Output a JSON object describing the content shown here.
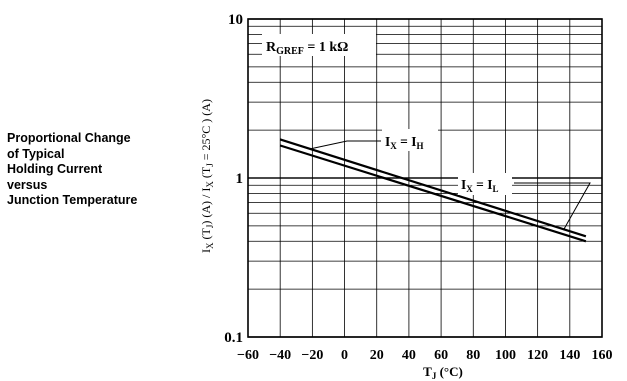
{
  "caption": [
    "Proportional Change",
    "of Typical",
    "Holding Current",
    "versus",
    "Junction Temperature"
  ],
  "chart_data": {
    "type": "line",
    "title": "",
    "xlabel": {
      "main": "T",
      "sub": "J",
      "rest": "  (°C)"
    },
    "ylabel": {
      "parts": [
        {
          "t": "I",
          "sub": false
        },
        {
          "t": "X",
          "sub": true
        },
        {
          "t": " (T",
          "sub": false
        },
        {
          "t": "J",
          "sub": true
        },
        {
          "t": ") (A) / I",
          "sub": false
        },
        {
          "t": "X",
          "sub": true
        },
        {
          "t": " (T",
          "sub": false
        },
        {
          "t": "J",
          "sub": true
        },
        {
          "t": " = 25°C ) (A)",
          "sub": false
        }
      ]
    },
    "x_axis": {
      "min": -60,
      "max": 160,
      "ticks": [
        -60,
        -40,
        -20,
        0,
        20,
        40,
        60,
        80,
        100,
        120,
        140,
        160
      ]
    },
    "y_axis": {
      "scale": "log",
      "min": 0.1,
      "max": 10,
      "tick_labels": [
        "0.1",
        "1",
        "10"
      ]
    },
    "grid": true,
    "condition": {
      "main": "R",
      "sub": "GREF",
      "rest": " = 1 kΩ"
    },
    "series": [
      {
        "name": "I_X = I_H",
        "label": {
          "a": "I",
          "a_sub": "X",
          "b": " = I",
          "b_sub": "H"
        },
        "x": [
          -40,
          150
        ],
        "y": [
          1.75,
          0.43
        ]
      },
      {
        "name": "I_X = I_L",
        "label": {
          "a": "I",
          "a_sub": "X",
          "b": " = I",
          "b_sub": "L"
        },
        "x": [
          -40,
          150
        ],
        "y": [
          1.6,
          0.4
        ]
      }
    ]
  }
}
